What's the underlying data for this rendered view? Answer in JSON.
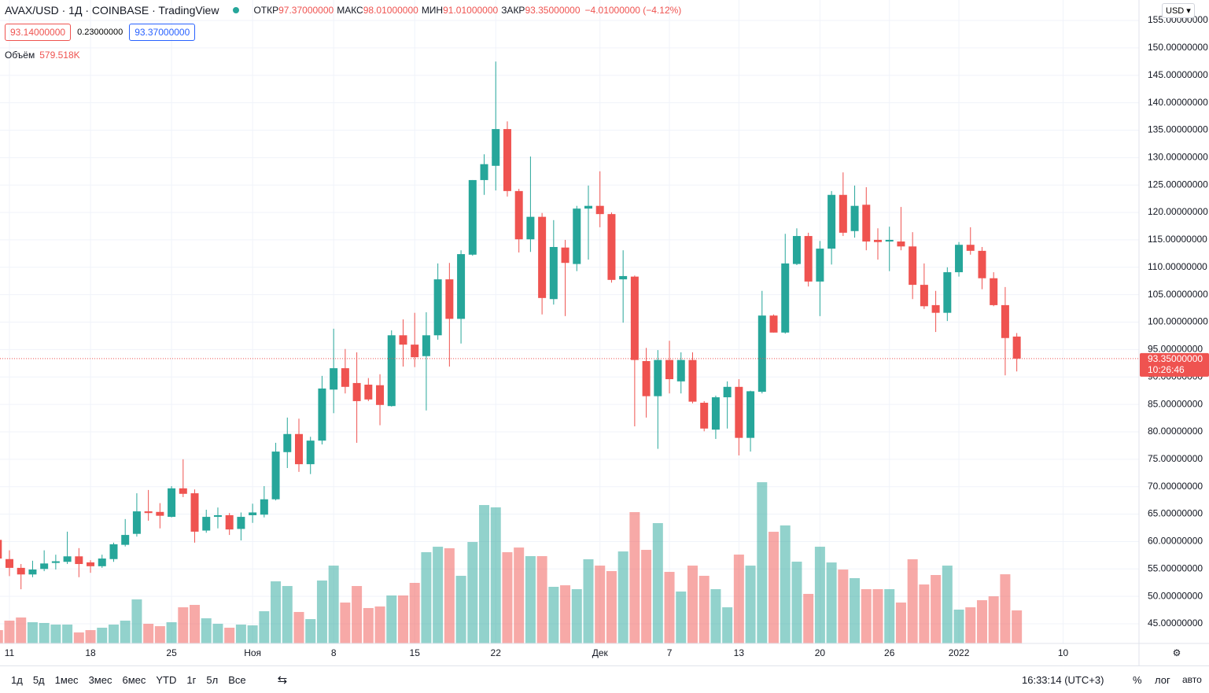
{
  "header": {
    "symbol": "AVAX/USD · 1Д · COINBASE · TradingView",
    "ohlc": [
      {
        "label": "ОТКР",
        "value": "97.37000000"
      },
      {
        "label": "МАКС",
        "value": "98.01000000"
      },
      {
        "label": "МИН",
        "value": "91.01000000"
      },
      {
        "label": "ЗАКР",
        "value": "93.35000000"
      }
    ],
    "change": "−4.01000000 (−4.12%)",
    "bid": "93.14000000",
    "spread": "0.23000000",
    "ask": "93.37000000",
    "volume_label": "Объём",
    "volume_value": "579.518K",
    "currency": "USD"
  },
  "chart_data": {
    "type": "candlestick",
    "up_color": "#26a69a",
    "down_color": "#ef5350",
    "grid": true,
    "open": [
      60.3,
      56.8,
      55.2,
      54.0,
      55.0,
      56.1,
      56.3,
      57.3,
      56.2,
      55.5,
      56.8,
      59.4,
      61.4,
      65.5,
      65.4,
      64.5,
      69.7,
      68.8,
      62.0,
      64.5,
      64.8,
      62.3,
      64.8,
      64.9,
      67.7,
      76.3,
      79.6,
      74.1,
      78.4,
      87.7,
      91.6,
      88.9,
      88.6,
      88.5,
      84.7,
      97.6,
      95.9,
      93.8,
      97.6,
      107.8,
      100.6,
      112.3,
      125.9,
      128.5,
      135.2,
      123.9,
      115.1,
      119.2,
      104.2,
      113.6,
      110.6,
      120.7,
      121.2,
      119.7,
      107.8,
      108.3,
      92.9,
      86.5,
      93.1,
      89.2,
      93.1,
      85.3,
      80.4,
      86.3,
      88.2,
      78.9,
      87.3,
      101.2,
      98.1,
      110.6,
      115.7,
      107.4,
      113.4,
      123.2,
      116.6,
      121.4,
      115.0,
      114.7,
      114.7,
      113.8,
      106.8,
      103.1,
      101.7,
      109.1,
      114.1,
      113.0,
      108.0,
      103.1,
      97.37
    ],
    "high": [
      60.3,
      58.4,
      55.9,
      56.5,
      58.4,
      57.6,
      61.8,
      58.8,
      56.6,
      57.6,
      59.8,
      64.1,
      68.8,
      69.4,
      67.0,
      70.1,
      75.0,
      69.5,
      65.8,
      66.2,
      65.2,
      65.3,
      66.9,
      70.1,
      78.0,
      82.6,
      82.4,
      79.1,
      90.2,
      98.8,
      95.1,
      94.5,
      89.8,
      90.5,
      98.5,
      100.5,
      101.7,
      101.8,
      110.7,
      110.8,
      113.1,
      125.9,
      130.6,
      147.5,
      136.6,
      124.3,
      130.2,
      119.9,
      118.6,
      115.0,
      121.2,
      124.9,
      127.5,
      120.0,
      113.1,
      108.5,
      95.3,
      94.9,
      96.6,
      94.5,
      94.5,
      85.6,
      86.6,
      89.2,
      89.6,
      87.5,
      105.7,
      101.4,
      116.1,
      117.1,
      116.3,
      114.8,
      123.9,
      127.3,
      124.9,
      124.6,
      117.1,
      117.4,
      121.0,
      116.4,
      110.7,
      105.7,
      110.0,
      114.6,
      117.3,
      113.7,
      109.1,
      106.4,
      98.01
    ],
    "low": [
      55.5,
      53.7,
      51.3,
      53.5,
      54.6,
      54.9,
      55.9,
      53.5,
      54.3,
      55.2,
      56.3,
      59.1,
      60.9,
      63.8,
      62.4,
      64.4,
      68.1,
      59.8,
      61.6,
      62.4,
      61.2,
      60.2,
      63.4,
      64.4,
      67.5,
      73.4,
      72.7,
      72.3,
      77.7,
      83.4,
      87.0,
      78.0,
      85.6,
      81.2,
      84.6,
      91.9,
      91.8,
      83.9,
      96.8,
      91.9,
      96.1,
      112.1,
      123.2,
      124.0,
      122.9,
      112.7,
      112.8,
      101.4,
      103.2,
      101.1,
      109.3,
      111.4,
      117.3,
      107.2,
      99.9,
      81.0,
      82.6,
      76.9,
      87.0,
      87.0,
      85.2,
      80.1,
      78.7,
      80.6,
      75.7,
      76.4,
      87.0,
      98.1,
      97.9,
      110.4,
      106.5,
      101.1,
      110.5,
      115.7,
      115.4,
      113.1,
      111.4,
      109.3,
      113.1,
      104.2,
      102.4,
      98.2,
      100.2,
      108.3,
      112.3,
      106.0,
      102.9,
      90.3,
      91.01
    ],
    "close": [
      56.9,
      55.2,
      54.0,
      54.9,
      56.0,
      56.4,
      57.3,
      55.9,
      55.5,
      56.9,
      59.5,
      61.2,
      65.5,
      65.2,
      64.7,
      69.7,
      68.7,
      61.8,
      64.5,
      64.8,
      62.2,
      64.5,
      65.3,
      67.7,
      76.4,
      79.6,
      74.1,
      78.4,
      87.9,
      91.6,
      88.2,
      85.6,
      85.9,
      84.9,
      97.6,
      95.9,
      93.6,
      97.6,
      107.8,
      100.6,
      112.4,
      125.9,
      128.8,
      135.2,
      123.9,
      115.1,
      119.2,
      104.4,
      113.7,
      110.8,
      120.7,
      121.2,
      119.7,
      107.7,
      108.4,
      93.1,
      86.5,
      93.1,
      89.6,
      93.1,
      85.5,
      80.6,
      86.3,
      88.2,
      78.9,
      87.4,
      101.2,
      98.1,
      110.7,
      115.7,
      107.4,
      113.4,
      123.2,
      116.3,
      121.2,
      114.7,
      114.6,
      115.0,
      113.8,
      106.8,
      102.9,
      101.7,
      109.1,
      114.1,
      113.0,
      108.0,
      103.1,
      97.1,
      93.35
    ],
    "volume": [
      234,
      400,
      455,
      372,
      359,
      331,
      331,
      193,
      234,
      276,
      331,
      400,
      772,
      345,
      303,
      372,
      634,
      676,
      441,
      345,
      276,
      331,
      317,
      565,
      1089,
      1007,
      552,
      427,
      1103,
      1365,
      717,
      1007,
      621,
      648,
      841,
      841,
      1062,
      1600,
      1696,
      1669,
      1186,
      1779,
      2427,
      2386,
      1600,
      1682,
      1531,
      1531,
      993,
      1020,
      952,
      1476,
      1365,
      1269,
      1613,
      2303,
      1641,
      2110,
      1255,
      910,
      1365,
      1186,
      952,
      634,
      1558,
      1365,
      2827,
      1958,
      2069,
      1434,
      869,
      1696,
      1420,
      1296,
      1145,
      952,
      952,
      952,
      717,
      1476,
      1034,
      1200,
      1365,
      593,
      634,
      758,
      827,
      1213,
      579.518
    ],
    "ylim": [
      41.42,
      158.73
    ],
    "vlim": [
      0,
      4800
    ],
    "yticks": [
      {
        "value": 45,
        "label": "45.00000000"
      },
      {
        "value": 50,
        "label": "50.00000000"
      },
      {
        "value": 55,
        "label": "55.00000000"
      },
      {
        "value": 60,
        "label": "60.00000000"
      },
      {
        "value": 65,
        "label": "65.00000000"
      },
      {
        "value": 70,
        "label": "70.00000000"
      },
      {
        "value": 75,
        "label": "75.00000000"
      },
      {
        "value": 80,
        "label": "80.00000000"
      },
      {
        "value": 85,
        "label": "85.00000000"
      },
      {
        "value": 90,
        "label": "90.00000000"
      },
      {
        "value": 95,
        "label": "95.00000000"
      },
      {
        "value": 100,
        "label": "100.00000000"
      },
      {
        "value": 105,
        "label": "105.00000000"
      },
      {
        "value": 110,
        "label": "110.00000000"
      },
      {
        "value": 115,
        "label": "115.00000000"
      },
      {
        "value": 120,
        "label": "120.00000000"
      },
      {
        "value": 125,
        "label": "125.00000000"
      },
      {
        "value": 130,
        "label": "130.00000000"
      },
      {
        "value": 135,
        "label": "135.00000000"
      },
      {
        "value": 140,
        "label": "140.00000000"
      },
      {
        "value": 145,
        "label": "145.00000000"
      },
      {
        "value": 150,
        "label": "150.00000000"
      },
      {
        "value": 155,
        "label": "155.00000000"
      }
    ],
    "xticks": [
      {
        "value": 1,
        "label": "11"
      },
      {
        "value": 8,
        "label": "18"
      },
      {
        "value": 15,
        "label": "25"
      },
      {
        "value": 22,
        "label": "Ноя"
      },
      {
        "value": 29,
        "label": "8"
      },
      {
        "value": 36,
        "label": "15"
      },
      {
        "value": 43,
        "label": "22"
      },
      {
        "value": 52,
        "label": "Дек"
      },
      {
        "value": 58,
        "label": "7"
      },
      {
        "value": 64,
        "label": "13"
      },
      {
        "value": 71,
        "label": "20"
      },
      {
        "value": 77,
        "label": "26"
      },
      {
        "value": 83,
        "label": "2022"
      },
      {
        "value": 92,
        "label": "10"
      }
    ],
    "last_price": {
      "value": 93.35,
      "label": "93.35000000"
    },
    "countdown": "10:26:46"
  },
  "toolbar": {
    "ranges": [
      "1д",
      "5д",
      "1мес",
      "3мес",
      "6мес",
      "YTD",
      "1г",
      "5л",
      "Все"
    ],
    "time": "16:33:14 (UTC+3)",
    "percent": "%",
    "log": "лог",
    "auto": "авто"
  }
}
